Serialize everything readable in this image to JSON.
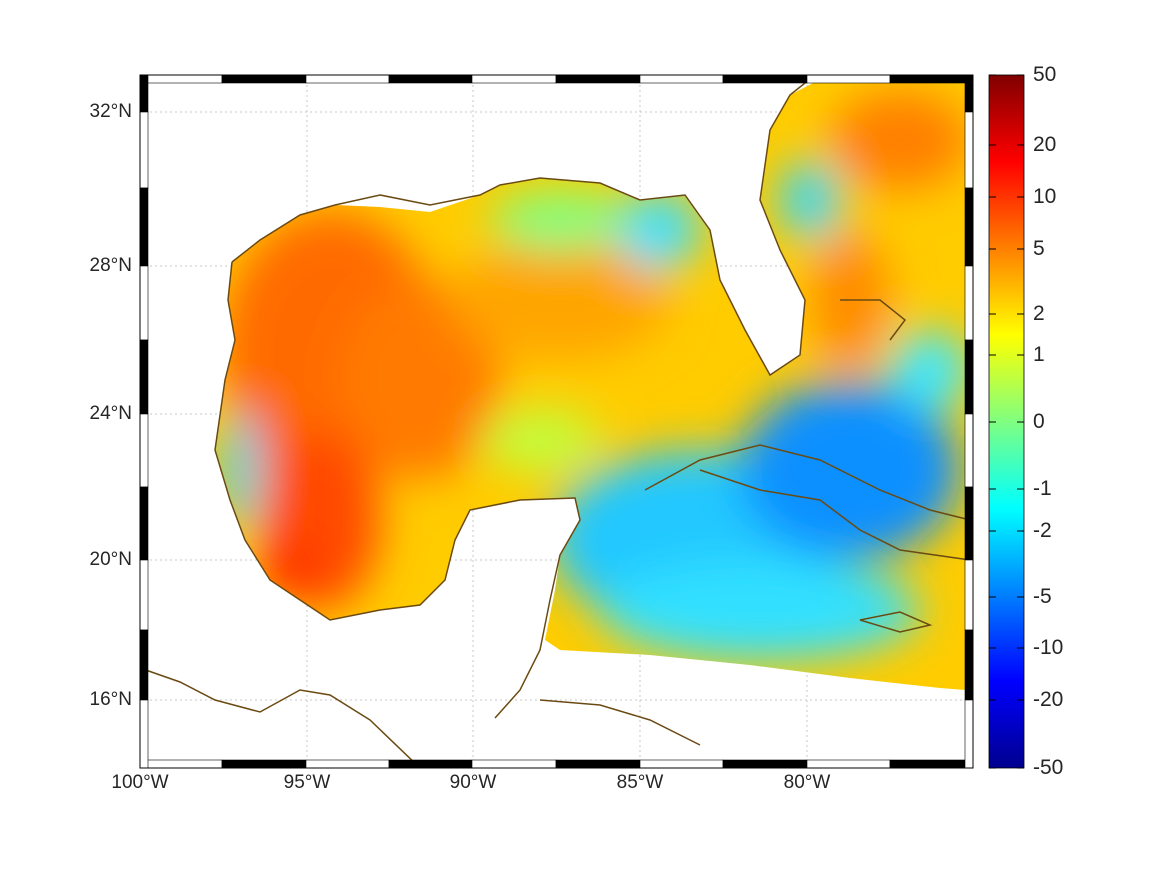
{
  "map": {
    "lat_labels": [
      "32°N",
      "28°N",
      "24°N",
      "20°N",
      "16°N"
    ],
    "lon_labels": [
      "100°W",
      "95°W",
      "90°W",
      "85°W",
      "80°W"
    ],
    "coast_color": "#6b4a12",
    "grid_color": "#c8c8c8"
  },
  "colorbar": {
    "ticks": [
      "50",
      "20",
      "10",
      "5",
      "2",
      "1",
      "0",
      "-1",
      "-2",
      "-5",
      "-10",
      "-20",
      "-50"
    ],
    "colormap": "jet"
  }
}
